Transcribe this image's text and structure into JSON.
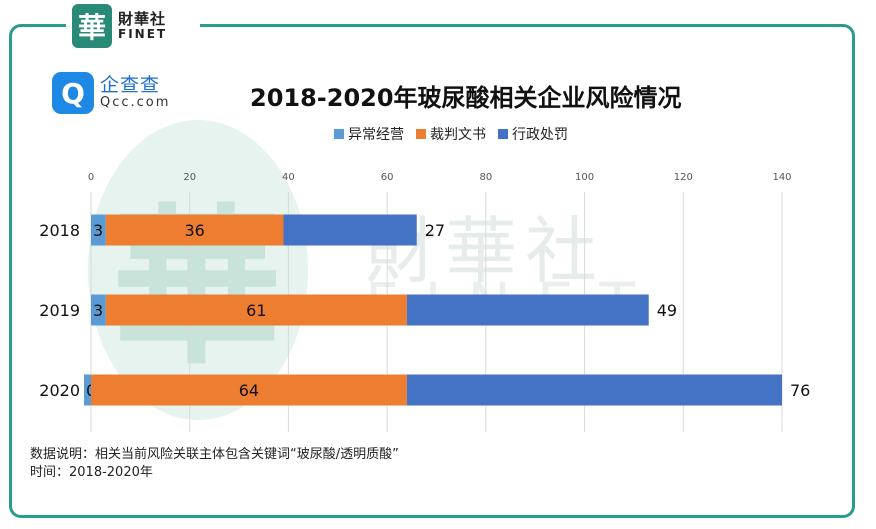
{
  "brand": {
    "finet_mark": "華",
    "finet_cn": "財華社",
    "finet_en": "FINET",
    "qcc_mark": "Q",
    "qcc_cn": "企查查",
    "qcc_en": "Qcc.com"
  },
  "watermark": {
    "cn": "財華社",
    "en": "FINET",
    "mark": "華"
  },
  "colors": {
    "frame": "#2a9d8a",
    "series_1": "#5b9bd5",
    "series_2": "#ed7d31",
    "series_3": "#4472c4",
    "grid": "#d9d9d9"
  },
  "chart_data": {
    "type": "bar",
    "orientation": "horizontal",
    "stacked": true,
    "title": "2018-2020年玻尿酸相关企业风险情况",
    "categories": [
      "2018",
      "2019",
      "2020"
    ],
    "series": [
      {
        "name": "异常经营",
        "values": [
          3,
          3,
          0
        ]
      },
      {
        "name": "裁判文书",
        "values": [
          36,
          61,
          64
        ]
      },
      {
        "name": "行政处罚",
        "values": [
          27,
          49,
          76
        ]
      }
    ],
    "xlim": [
      0,
      140
    ],
    "xticks": [
      0,
      20,
      40,
      60,
      80,
      100,
      120,
      140
    ],
    "x_axis_position": "top",
    "grid": true,
    "legend": "top-center"
  },
  "notes": {
    "line1": "数据说明：相关当前风险关联主体包含关键词“玻尿酸/透明质酸”",
    "line2": "时间：2018-2020年"
  }
}
